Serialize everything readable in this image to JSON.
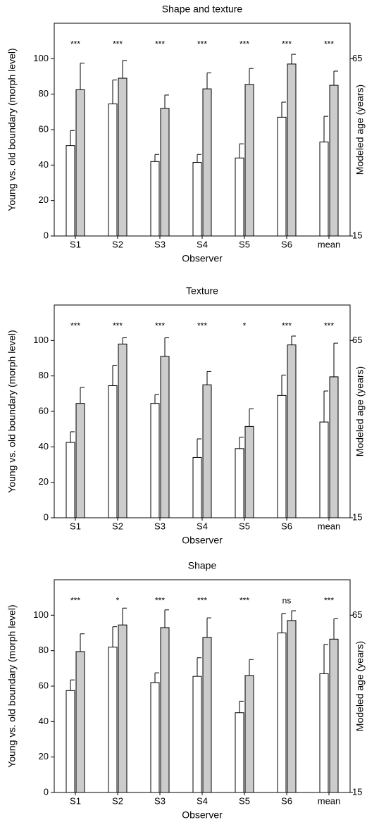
{
  "chart_data": [
    {
      "type": "bar",
      "title": "Shape and texture",
      "xlabel": "Observer",
      "ylabel": "Young vs. old boundary (morph level)",
      "y2label": "Modeled age (years)",
      "categories": [
        "S1",
        "S2",
        "S3",
        "S4",
        "S5",
        "S6",
        "mean"
      ],
      "series": [
        {
          "color": "#ffffff",
          "values": [
            51,
            74.5,
            42,
            41.5,
            44,
            67,
            53
          ],
          "errors": [
            8.5,
            13.5,
            4,
            4.5,
            8,
            8.5,
            14.5
          ]
        },
        {
          "color": "#cccccc",
          "values": [
            82.5,
            89,
            72,
            83,
            85.5,
            97,
            85
          ],
          "errors": [
            15,
            10,
            7.5,
            9,
            9,
            5.5,
            8
          ]
        }
      ],
      "annotations": [
        "***",
        "***",
        "***",
        "***",
        "***",
        "***",
        "***"
      ],
      "ylim": [
        0,
        120
      ],
      "yticks": [
        0,
        20,
        40,
        60,
        80,
        100
      ],
      "y2lim": [
        15,
        75
      ],
      "y2ticks": [
        15,
        65
      ]
    },
    {
      "type": "bar",
      "title": "Texture",
      "xlabel": "Observer",
      "ylabel": "Young vs. old boundary (morph level)",
      "y2label": "Modeled age (years)",
      "categories": [
        "S1",
        "S2",
        "S3",
        "S4",
        "S5",
        "S6",
        "mean"
      ],
      "series": [
        {
          "color": "#ffffff",
          "values": [
            42.5,
            74.5,
            64.5,
            34,
            39,
            69,
            54
          ],
          "errors": [
            6,
            11.5,
            5,
            10.5,
            6.5,
            11.5,
            17.5
          ]
        },
        {
          "color": "#cccccc",
          "values": [
            64.5,
            98,
            91,
            75,
            51.5,
            97.5,
            79.5
          ],
          "errors": [
            9,
            3.5,
            10.5,
            7.5,
            10,
            5,
            19
          ]
        }
      ],
      "annotations": [
        "***",
        "***",
        "***",
        "***",
        "*",
        "***",
        "***"
      ],
      "ylim": [
        0,
        120
      ],
      "yticks": [
        0,
        20,
        40,
        60,
        80,
        100
      ],
      "y2lim": [
        15,
        75
      ],
      "y2ticks": [
        15,
        65
      ]
    },
    {
      "type": "bar",
      "title": "Shape",
      "xlabel": "Observer",
      "ylabel": "Young vs. old boundary (morph level)",
      "y2label": "Modeled age (years)",
      "categories": [
        "S1",
        "S2",
        "S3",
        "S4",
        "S5",
        "S6",
        "mean"
      ],
      "series": [
        {
          "color": "#ffffff",
          "values": [
            57.5,
            82,
            62,
            65.5,
            45,
            90,
            67
          ],
          "errors": [
            6,
            11.5,
            5.5,
            10.5,
            6.5,
            11,
            16.5
          ]
        },
        {
          "color": "#cccccc",
          "values": [
            79.5,
            94.5,
            93,
            87.5,
            66,
            97,
            86.5
          ],
          "errors": [
            10,
            9.5,
            10,
            11,
            9,
            5.5,
            11.5
          ]
        }
      ],
      "annotations": [
        "***",
        "*",
        "***",
        "***",
        "***",
        "ns",
        "***"
      ],
      "ylim": [
        0,
        120
      ],
      "yticks": [
        0,
        20,
        40,
        60,
        80,
        100
      ],
      "y2lim": [
        15,
        75
      ],
      "y2ticks": [
        15,
        65
      ]
    }
  ]
}
